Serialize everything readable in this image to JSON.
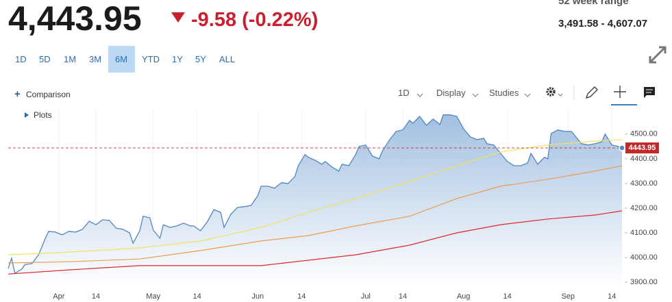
{
  "header": {
    "price": "4,443.95",
    "change": "-9.58 (-0.22%)",
    "range_title": "52 week range",
    "range_value": "3,491.58 - 4,607.07"
  },
  "range_buttons": [
    "1D",
    "5D",
    "1M",
    "3M",
    "6M",
    "YTD",
    "1Y",
    "5Y",
    "ALL"
  ],
  "selected_range": 4,
  "toolbar": {
    "comparison": "Comparison",
    "interval": "1D",
    "display": "Display",
    "studies": "Studies",
    "plots": "Plots"
  },
  "chart_data": {
    "type": "line",
    "xlim": [
      "Mar 19",
      "Sep 17"
    ],
    "xticks": [
      {
        "value": "Apr 3",
        "label": "Apr"
      },
      {
        "value": "Apr 14",
        "label": "14"
      },
      {
        "value": "May 1",
        "label": "May"
      },
      {
        "value": "May 14",
        "label": "14"
      },
      {
        "value": "Jun 1",
        "label": "Jun"
      },
      {
        "value": "Jun 14",
        "label": "14"
      },
      {
        "value": "Jul 3",
        "label": "Jul"
      },
      {
        "value": "Jul 14",
        "label": "14"
      },
      {
        "value": "Aug 1",
        "label": "Aug"
      },
      {
        "value": "Aug 14",
        "label": "14"
      },
      {
        "value": "Sep 1",
        "label": "Sep"
      },
      {
        "value": "Sep 14",
        "label": "14"
      }
    ],
    "ylim": [
      3878,
      4605
    ],
    "yticks": [
      {
        "value": 3900,
        "label": "3900.00"
      },
      {
        "value": 4000,
        "label": "4000.00"
      },
      {
        "value": 4100,
        "label": "4100.00"
      },
      {
        "value": 4200,
        "label": "4200.00"
      },
      {
        "value": 4300,
        "label": "4300.00"
      },
      {
        "value": 4400,
        "label": "4400.00"
      },
      {
        "value": 4500,
        "label": "4500.00"
      }
    ],
    "series": [
      {
        "color": "#4f86c0",
        "area": true,
        "x": [
          "Mar 19",
          "Mar 20",
          "Mar 21",
          "Mar 23",
          "Mar 24",
          "Mar 26",
          "Mar 28",
          "Mar 29",
          "Mar 30",
          "Mar 31",
          "Apr 2",
          "Apr 4",
          "Apr 6",
          "Apr 8",
          "Apr 10",
          "Apr 12",
          "Apr 14",
          "Apr 16",
          "Apr 18",
          "Apr 20",
          "Apr 22",
          "Apr 24",
          "Apr 25",
          "Apr 27",
          "Apr 28",
          "Apr 30",
          "May 1",
          "May 3",
          "May 4",
          "May 6",
          "May 8",
          "May 10",
          "May 12",
          "May 13",
          "May 15",
          "May 17",
          "May 19",
          "May 21",
          "May 22",
          "May 24",
          "May 26",
          "May 28",
          "May 30",
          "Jun 1",
          "Jun 2",
          "Jun 4",
          "Jun 6",
          "Jun 8",
          "Jun 10",
          "Jun 12",
          "Jun 13",
          "Jun 15",
          "Jun 16",
          "Jun 18",
          "Jun 20",
          "Jun 21",
          "Jun 23",
          "Jun 25",
          "Jun 26",
          "Jun 28",
          "Jun 30",
          "Jul 1",
          "Jul 3",
          "Jul 5",
          "Jul 7",
          "Jul 8",
          "Jul 10",
          "Jul 12",
          "Jul 14",
          "Jul 16",
          "Jul 17",
          "Jul 19",
          "Jul 21",
          "Jul 23",
          "Jul 25",
          "Jul 26",
          "Jul 28",
          "Jul 30",
          "Aug 1",
          "Aug 3",
          "Aug 5",
          "Aug 7",
          "Aug 8",
          "Aug 10",
          "Aug 12",
          "Aug 14",
          "Aug 16",
          "Aug 18",
          "Aug 20",
          "Aug 21",
          "Aug 23",
          "Aug 25",
          "Aug 26",
          "Aug 27",
          "Aug 29",
          "Aug 31",
          "Sep 2",
          "Sep 5",
          "Sep 7",
          "Sep 9",
          "Sep 11",
          "Sep 12",
          "Sep 14",
          "Sep 16",
          "Sep 17"
        ],
        "values": [
          3956,
          3997,
          3936,
          3953,
          3972,
          3975,
          4011,
          4044,
          4078,
          4106,
          4103,
          4092,
          4106,
          4103,
          4114,
          4147,
          4133,
          4153,
          4150,
          4119,
          4114,
          4100,
          4058,
          4108,
          4167,
          4161,
          4111,
          4078,
          4133,
          4122,
          4128,
          4139,
          4128,
          4128,
          4108,
          4144,
          4194,
          4183,
          4122,
          4175,
          4203,
          4206,
          4211,
          4250,
          4289,
          4289,
          4281,
          4303,
          4300,
          4328,
          4372,
          4417,
          4406,
          4394,
          4378,
          4389,
          4367,
          4350,
          4378,
          4372,
          4417,
          4450,
          4456,
          4411,
          4400,
          4433,
          4475,
          4511,
          4517,
          4556,
          4544,
          4572,
          4536,
          4561,
          4539,
          4578,
          4578,
          4572,
          4522,
          4489,
          4478,
          4483,
          4461,
          4456,
          4422,
          4389,
          4372,
          4372,
          4383,
          4422,
          4378,
          4406,
          4400,
          4503,
          4517,
          4511,
          4511,
          4461,
          4456,
          4461,
          4469,
          4500,
          4456,
          4450,
          4443.95
        ]
      },
      {
        "color": "#f3e25c",
        "x": [
          "Mar 19",
          "Apr 6",
          "Apr 27",
          "May 15",
          "Jun 2",
          "Jun 16",
          "Jun 30",
          "Jul 16",
          "Jul 30",
          "Aug 12",
          "Aug 26",
          "Sep 9",
          "Sep 17"
        ],
        "values": [
          4011,
          4022,
          4039,
          4067,
          4122,
          4183,
          4239,
          4308,
          4372,
          4428,
          4456,
          4472,
          4478
        ]
      },
      {
        "color": "#ee9a4d",
        "x": [
          "Mar 19",
          "Apr 6",
          "Apr 27",
          "May 15",
          "Jun 2",
          "Jun 16",
          "Jun 30",
          "Jul 16",
          "Jul 30",
          "Aug 12",
          "Aug 26",
          "Sep 9",
          "Sep 17"
        ],
        "values": [
          3978,
          3983,
          3994,
          4028,
          4067,
          4089,
          4128,
          4167,
          4239,
          4289,
          4317,
          4350,
          4372
        ]
      },
      {
        "color": "#e0252b",
        "x": [
          "Mar 19",
          "Apr 6",
          "Apr 27",
          "May 15",
          "Jun 2",
          "Jun 16",
          "Jun 30",
          "Jul 16",
          "Jul 30",
          "Aug 12",
          "Aug 26",
          "Sep 9",
          "Sep 17"
        ],
        "values": [
          3933,
          3950,
          3967,
          3967,
          3967,
          3989,
          4011,
          4050,
          4100,
          4133,
          4156,
          4172,
          4189
        ]
      }
    ]
  }
}
